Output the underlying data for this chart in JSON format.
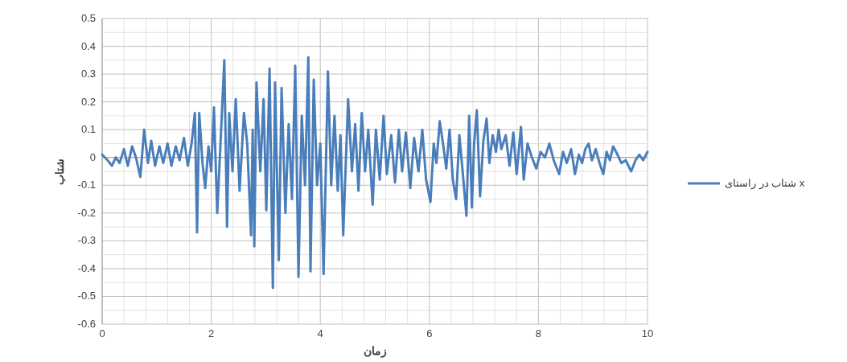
{
  "chart_data": {
    "type": "line",
    "xlabel": "زمان",
    "ylabel": "شتاب",
    "x": [
      0,
      0.1,
      0.18,
      0.25,
      0.32,
      0.4,
      0.47,
      0.55,
      0.62,
      0.7,
      0.77,
      0.84,
      0.9,
      0.97,
      1.05,
      1.12,
      1.2,
      1.27,
      1.35,
      1.42,
      1.5,
      1.57,
      1.64,
      1.7,
      1.74,
      1.78,
      1.84,
      1.89,
      1.95,
      2.0,
      2.05,
      2.11,
      2.17,
      2.24,
      2.29,
      2.33,
      2.39,
      2.45,
      2.52,
      2.6,
      2.66,
      2.73,
      2.76,
      2.79,
      2.83,
      2.9,
      2.96,
      3.01,
      3.07,
      3.13,
      3.17,
      3.24,
      3.29,
      3.36,
      3.42,
      3.48,
      3.54,
      3.6,
      3.66,
      3.72,
      3.78,
      3.82,
      3.88,
      3.94,
      4.0,
      4.06,
      4.14,
      4.2,
      4.26,
      4.32,
      4.37,
      4.42,
      4.51,
      4.58,
      4.64,
      4.7,
      4.76,
      4.82,
      4.88,
      4.96,
      5.02,
      5.09,
      5.16,
      5.22,
      5.3,
      5.37,
      5.44,
      5.5,
      5.57,
      5.65,
      5.72,
      5.8,
      5.87,
      5.94,
      6.02,
      6.08,
      6.13,
      6.19,
      6.25,
      6.31,
      6.37,
      6.43,
      6.49,
      6.55,
      6.61,
      6.68,
      6.73,
      6.78,
      6.82,
      6.87,
      6.93,
      6.99,
      7.05,
      7.1,
      7.16,
      7.22,
      7.27,
      7.32,
      7.4,
      7.47,
      7.54,
      7.6,
      7.68,
      7.73,
      7.8,
      7.88,
      7.96,
      8.04,
      8.12,
      8.2,
      8.28,
      8.38,
      8.45,
      8.52,
      8.6,
      8.67,
      8.74,
      8.8,
      8.86,
      8.92,
      8.98,
      9.05,
      9.12,
      9.19,
      9.25,
      9.31,
      9.37,
      9.45,
      9.52,
      9.6,
      9.7,
      9.78,
      9.85,
      9.92,
      10
    ],
    "series": [
      {
        "name": "شتاب در راستای x",
        "color": "#4a7ebb",
        "values": [
          0.01,
          -0.01,
          -0.03,
          0.0,
          -0.02,
          0.03,
          -0.03,
          0.04,
          0.0,
          -0.07,
          0.1,
          -0.02,
          0.06,
          -0.03,
          0.04,
          -0.02,
          0.05,
          -0.03,
          0.04,
          -0.01,
          0.07,
          -0.03,
          0.05,
          0.16,
          -0.27,
          0.16,
          -0.02,
          -0.11,
          0.04,
          -0.05,
          0.18,
          -0.2,
          0.05,
          0.35,
          -0.25,
          0.16,
          -0.05,
          0.21,
          -0.12,
          0.16,
          0.05,
          -0.28,
          0.1,
          -0.32,
          0.27,
          -0.05,
          0.21,
          -0.19,
          0.32,
          -0.47,
          0.27,
          -0.37,
          0.25,
          -0.2,
          0.12,
          -0.15,
          0.33,
          -0.43,
          0.15,
          -0.1,
          0.36,
          -0.41,
          0.28,
          -0.1,
          0.05,
          -0.42,
          0.31,
          -0.1,
          0.15,
          -0.12,
          0.08,
          -0.28,
          0.21,
          -0.05,
          0.12,
          -0.12,
          0.16,
          -0.05,
          0.1,
          -0.17,
          0.1,
          -0.08,
          0.15,
          -0.06,
          0.08,
          -0.09,
          0.1,
          -0.05,
          0.09,
          -0.11,
          0.07,
          -0.05,
          0.1,
          -0.08,
          -0.16,
          0.05,
          -0.02,
          0.13,
          0.05,
          -0.04,
          0.1,
          -0.08,
          -0.15,
          0.08,
          -0.05,
          -0.21,
          0.15,
          -0.18,
          0.05,
          0.17,
          -0.14,
          0.06,
          0.14,
          -0.02,
          0.08,
          0.02,
          0.1,
          0.03,
          0.08,
          -0.03,
          0.09,
          -0.06,
          0.11,
          -0.08,
          0.05,
          0.0,
          -0.04,
          0.02,
          0.0,
          0.05,
          -0.01,
          -0.06,
          0.02,
          -0.02,
          0.03,
          -0.06,
          0.01,
          -0.02,
          0.03,
          0.05,
          -0.01,
          0.03,
          -0.02,
          -0.06,
          0.02,
          -0.01,
          0.04,
          0.01,
          -0.02,
          -0.01,
          -0.05,
          -0.01,
          0.01,
          -0.01,
          0.02
        ]
      }
    ],
    "xlim": [
      0,
      10
    ],
    "xticks": [
      0,
      2,
      4,
      6,
      8,
      10
    ],
    "ylim": [
      -0.6,
      0.5
    ],
    "yticks": [
      -0.6,
      -0.5,
      -0.4,
      -0.3,
      -0.2,
      -0.1,
      0,
      0.1,
      0.2,
      0.3,
      0.4,
      0.5
    ],
    "grid": true,
    "legend": "right",
    "marker": "none",
    "line_style": "solid"
  }
}
